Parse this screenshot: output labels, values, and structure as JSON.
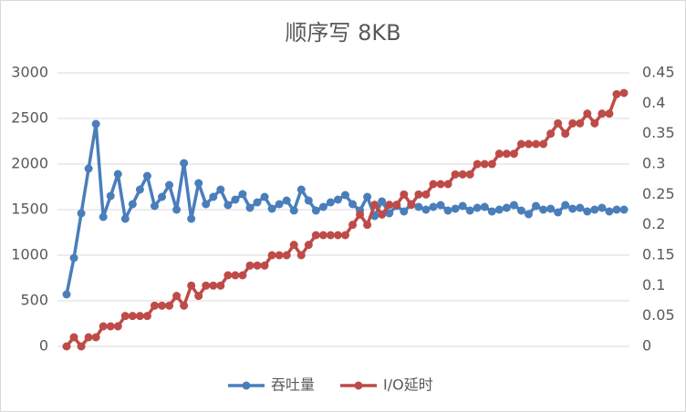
{
  "chart_data": {
    "type": "line",
    "title": "顺序写 8KB",
    "ylim": [
      0,
      3000
    ],
    "yticks": [
      0,
      500,
      1000,
      1500,
      2000,
      2500,
      3000
    ],
    "y2lim": [
      0,
      0.45
    ],
    "y2ticks": [
      0,
      0.05,
      0.1,
      0.15,
      0.2,
      0.25,
      0.3,
      0.35,
      0.4,
      0.45
    ],
    "grid": true,
    "legend": "bottom",
    "series": [
      {
        "name": "吞吐量",
        "color": "#4a7ebb",
        "values": [
          570,
          970,
          1460,
          1950,
          2440,
          1420,
          1650,
          1890,
          1400,
          1560,
          1720,
          1870,
          1540,
          1640,
          1770,
          1500,
          2010,
          1400,
          1790,
          1560,
          1640,
          1720,
          1550,
          1610,
          1670,
          1520,
          1580,
          1640,
          1510,
          1560,
          1600,
          1490,
          1720,
          1600,
          1490,
          1530,
          1580,
          1610,
          1660,
          1560,
          1490,
          1640,
          1430,
          1590,
          1460,
          1540,
          1480,
          1560,
          1530,
          1500,
          1530,
          1550,
          1490,
          1510,
          1540,
          1490,
          1520,
          1530,
          1480,
          1500,
          1520,
          1550,
          1490,
          1450,
          1540,
          1500,
          1510,
          1470,
          1550,
          1510,
          1520,
          1480,
          1500,
          1520,
          1480,
          1500,
          1500
        ]
      },
      {
        "name": "I/O延时",
        "color": "#be4b48",
        "axis": "y2",
        "values": [
          0,
          0.015,
          0,
          0.015,
          0.015,
          0.033,
          0.033,
          0.033,
          0.05,
          0.05,
          0.05,
          0.05,
          0.067,
          0.067,
          0.067,
          0.083,
          0.067,
          0.1,
          0.083,
          0.1,
          0.1,
          0.1,
          0.117,
          0.117,
          0.117,
          0.133,
          0.133,
          0.133,
          0.15,
          0.15,
          0.15,
          0.167,
          0.15,
          0.167,
          0.183,
          0.183,
          0.183,
          0.183,
          0.183,
          0.2,
          0.217,
          0.2,
          0.233,
          0.217,
          0.233,
          0.233,
          0.25,
          0.233,
          0.25,
          0.25,
          0.267,
          0.267,
          0.267,
          0.283,
          0.283,
          0.283,
          0.3,
          0.3,
          0.3,
          0.317,
          0.317,
          0.317,
          0.333,
          0.333,
          0.333,
          0.333,
          0.35,
          0.367,
          0.35,
          0.367,
          0.367,
          0.383,
          0.367,
          0.383,
          0.383,
          0.415,
          0.417
        ]
      }
    ]
  }
}
